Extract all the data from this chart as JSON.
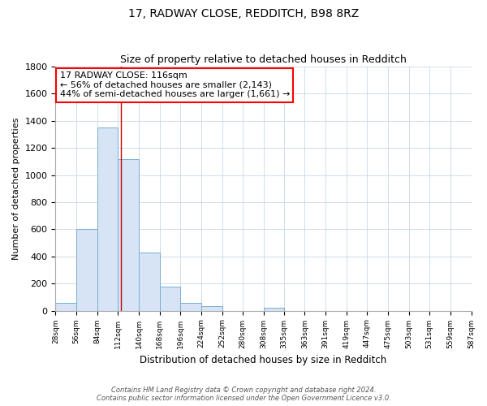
{
  "title": "17, RADWAY CLOSE, REDDITCH, B98 8RZ",
  "subtitle": "Size of property relative to detached houses in Redditch",
  "xlabel": "Distribution of detached houses by size in Redditch",
  "ylabel": "Number of detached properties",
  "bar_color": "#d6e4f5",
  "bar_edge_color": "#7aadd4",
  "bin_edges": [
    28,
    56,
    84,
    112,
    140,
    168,
    196,
    224,
    252,
    280,
    308,
    335,
    363,
    391,
    419,
    447,
    475,
    503,
    531,
    559,
    587
  ],
  "bar_heights": [
    60,
    600,
    1350,
    1120,
    430,
    175,
    60,
    35,
    0,
    0,
    20,
    0,
    0,
    0,
    0,
    0,
    0,
    0,
    0,
    0
  ],
  "tick_labels": [
    "28sqm",
    "56sqm",
    "84sqm",
    "112sqm",
    "140sqm",
    "168sqm",
    "196sqm",
    "224sqm",
    "252sqm",
    "280sqm",
    "308sqm",
    "335sqm",
    "363sqm",
    "391sqm",
    "419sqm",
    "447sqm",
    "475sqm",
    "503sqm",
    "531sqm",
    "559sqm",
    "587sqm"
  ],
  "ylim": [
    0,
    1800
  ],
  "yticks": [
    0,
    200,
    400,
    600,
    800,
    1000,
    1200,
    1400,
    1600,
    1800
  ],
  "property_line_x": 116,
  "annotation_line1": "17 RADWAY CLOSE: 116sqm",
  "annotation_line2": "← 56% of detached houses are smaller (2,143)",
  "annotation_line3": "44% of semi-detached houses are larger (1,661) →",
  "footer_line1": "Contains HM Land Registry data © Crown copyright and database right 2024.",
  "footer_line2": "Contains public sector information licensed under the Open Government Licence v3.0.",
  "background_color": "#ffffff",
  "grid_color": "#c8d8e8"
}
